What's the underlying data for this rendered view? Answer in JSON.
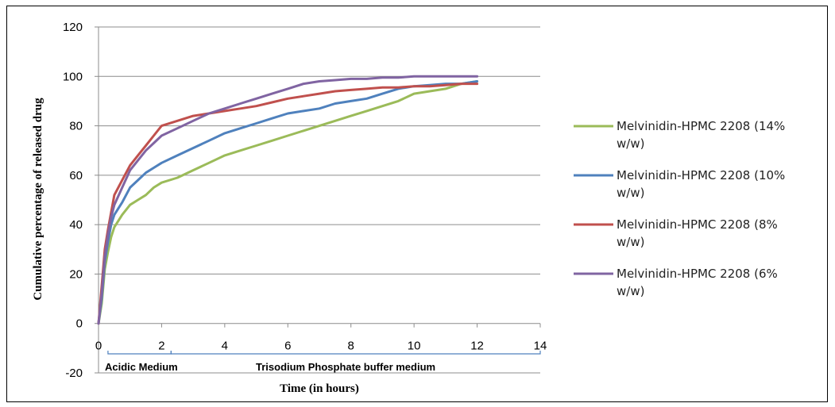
{
  "chart_data": {
    "type": "line",
    "title": "",
    "xlabel": "Time (in hours)",
    "ylabel": "Cumulative percentage of released drug",
    "xlim": [
      0,
      14
    ],
    "ylim": [
      -20,
      120
    ],
    "x_ticks": [
      "0",
      "2",
      "4",
      "6",
      "8",
      "10",
      "12",
      "14"
    ],
    "y_ticks": [
      "-20",
      "0",
      "20",
      "40",
      "60",
      "80",
      "100",
      "120"
    ],
    "grid": "horizontal",
    "legend_position": "right",
    "colors": {
      "series_14": "#9bbb59",
      "series_10": "#4f81bd",
      "series_8": "#c0504d",
      "series_6": "#8064a2",
      "bracket": "#4f81bd"
    },
    "annotations": {
      "acidic": {
        "label": "Acidic Medium",
        "x_range": [
          0.3,
          2.3
        ]
      },
      "buffer": {
        "label": "Trisodium Phosphate buffer medium",
        "x_range": [
          2.3,
          14
        ]
      }
    },
    "series": [
      {
        "name": "Melvinidin-HPMC 2208 (14% w/w)",
        "name_lines": [
          "Melvinidin-HPMC 2208 (14%",
          "w/w)"
        ],
        "color": "#9bbb59",
        "x": [
          0,
          0.1,
          0.2,
          0.3,
          0.4,
          0.5,
          0.75,
          1,
          1.25,
          1.5,
          1.75,
          2,
          2.5,
          3,
          3.5,
          4,
          4.5,
          5,
          5.5,
          6,
          6.5,
          7,
          7.5,
          8,
          8.5,
          9,
          9.5,
          10,
          10.5,
          11,
          11.5,
          12
        ],
        "y": [
          0,
          8,
          22,
          29,
          35,
          39,
          44,
          48,
          50,
          52,
          55,
          57,
          59,
          62,
          65,
          68,
          70,
          72,
          74,
          76,
          78,
          80,
          82,
          84,
          86,
          88,
          90,
          93,
          94,
          95,
          97,
          98
        ]
      },
      {
        "name": "Melvinidin-HPMC 2208 (10% w/w)",
        "name_lines": [
          "Melvinidin-HPMC 2208 (10%",
          "w/w)"
        ],
        "color": "#4f81bd",
        "x": [
          0,
          0.1,
          0.2,
          0.3,
          0.4,
          0.5,
          0.75,
          1,
          1.25,
          1.5,
          1.75,
          2,
          2.5,
          3,
          3.5,
          4,
          4.5,
          5,
          5.5,
          6,
          6.5,
          7,
          7.5,
          8,
          8.5,
          9,
          9.5,
          10,
          10.5,
          11,
          11.5,
          12
        ],
        "y": [
          0,
          10,
          25,
          33,
          40,
          44,
          49,
          55,
          58,
          61,
          63,
          65,
          68,
          71,
          74,
          77,
          79,
          81,
          83,
          85,
          86,
          87,
          89,
          90,
          91,
          93,
          95,
          96,
          96.5,
          97,
          97,
          98
        ]
      },
      {
        "name": "Melvinidin-HPMC 2208 (8% w/w)",
        "name_lines": [
          "Melvinidin-HPMC 2208 (8%",
          "w/w)"
        ],
        "color": "#c0504d",
        "x": [
          0,
          0.1,
          0.2,
          0.3,
          0.4,
          0.5,
          0.75,
          1,
          1.25,
          1.5,
          1.75,
          2,
          2.5,
          3,
          3.5,
          4,
          4.5,
          5,
          5.5,
          6,
          6.5,
          7,
          7.5,
          8,
          8.5,
          9,
          9.5,
          10,
          10.5,
          11,
          11.5,
          12
        ],
        "y": [
          0,
          15,
          30,
          38,
          45,
          52,
          58,
          64,
          68,
          72,
          76,
          80,
          82,
          84,
          85,
          86,
          87,
          88,
          89.5,
          91,
          92,
          93,
          94,
          94.5,
          95,
          95.5,
          95.5,
          96,
          96,
          96.5,
          97,
          97
        ]
      },
      {
        "name": "Melvinidin-HPMC 2208 (6% w/w)",
        "name_lines": [
          "Melvinidin-HPMC 2208 (6%",
          "w/w)"
        ],
        "color": "#8064a2",
        "x": [
          0,
          0.1,
          0.2,
          0.3,
          0.4,
          0.5,
          0.75,
          1,
          1.25,
          1.5,
          1.75,
          2,
          2.5,
          3,
          3.5,
          4,
          4.5,
          5,
          5.5,
          6,
          6.5,
          7,
          7.5,
          8,
          8.5,
          9,
          9.5,
          10,
          10.5,
          11,
          11.5,
          12
        ],
        "y": [
          0,
          12,
          27,
          36,
          43,
          48,
          55,
          62,
          66,
          70,
          73,
          76,
          79,
          82,
          85,
          87,
          89,
          91,
          93,
          95,
          97,
          98,
          98.5,
          99,
          99,
          99.5,
          99.5,
          100,
          100,
          100,
          100,
          100
        ]
      }
    ]
  }
}
